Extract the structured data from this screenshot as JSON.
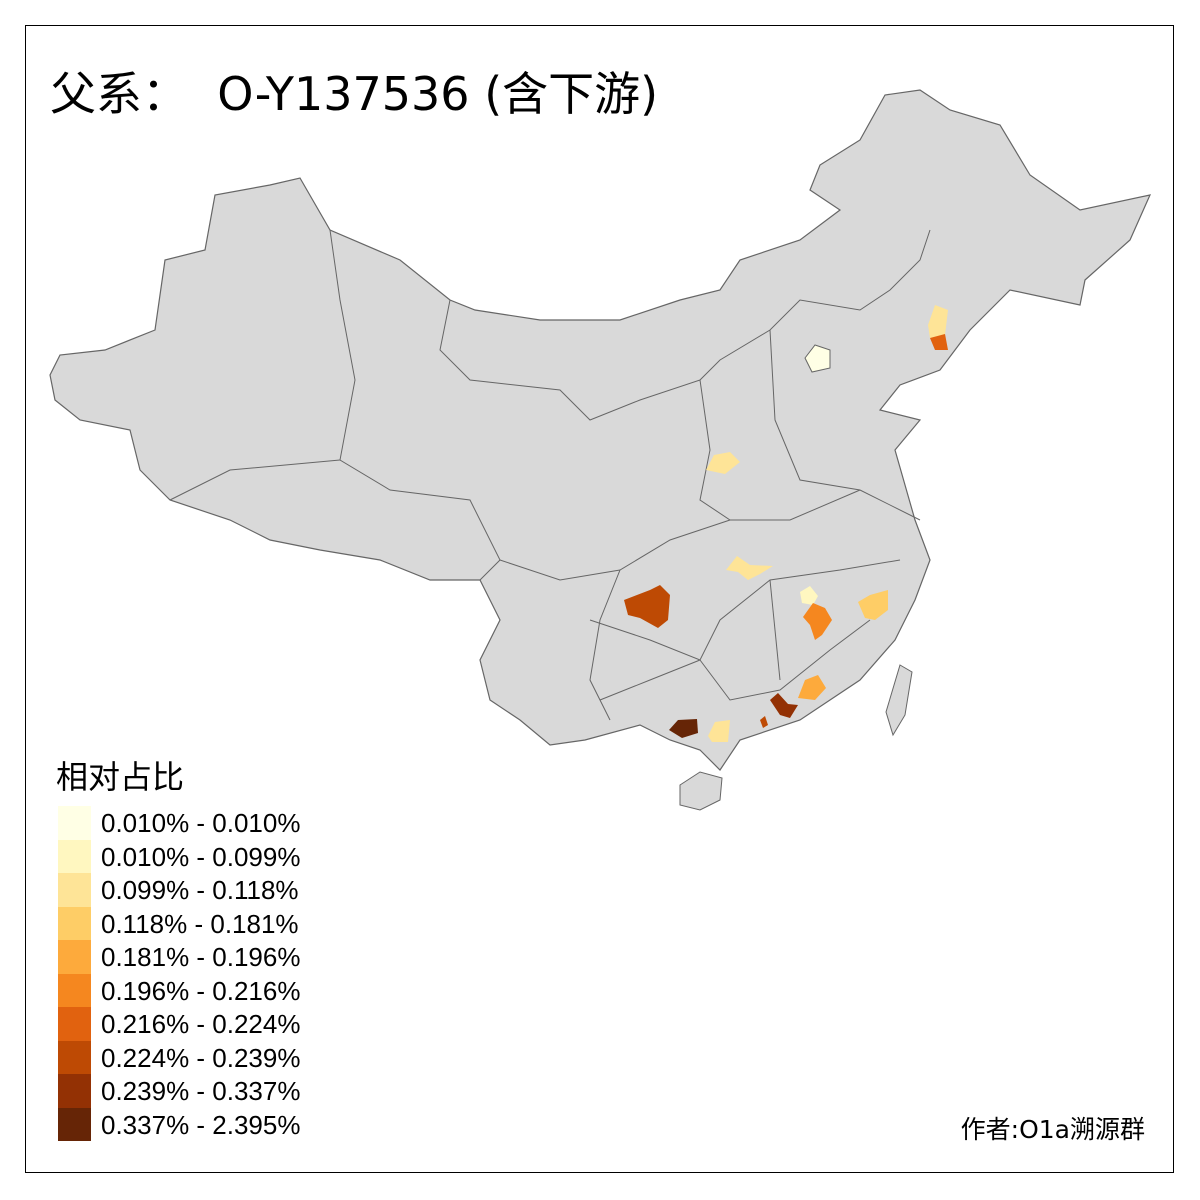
{
  "title": "父系：  O-Y137536 (含下游)",
  "legend": {
    "title": "相对占比",
    "classes": [
      {
        "label": "0.010% - 0.010%",
        "color": "#FFFFE5"
      },
      {
        "label": "0.010% - 0.099%",
        "color": "#FFF7C0"
      },
      {
        "label": "0.099% - 0.118%",
        "color": "#FEE497"
      },
      {
        "label": "0.118% - 0.181%",
        "color": "#FECD66"
      },
      {
        "label": "0.181% - 0.196%",
        "color": "#FDAA3C"
      },
      {
        "label": "0.196% - 0.216%",
        "color": "#F5871F"
      },
      {
        "label": "0.216% - 0.224%",
        "color": "#E1620F"
      },
      {
        "label": "0.224% - 0.239%",
        "color": "#BE4A04"
      },
      {
        "label": "0.239% - 0.337%",
        "color": "#933104"
      },
      {
        "label": "0.337% - 2.395%",
        "color": "#662506"
      }
    ]
  },
  "map": {
    "base_color": "#D9D9D9",
    "border_color": "#666666"
  },
  "author": "作者:O1a溯源群"
}
